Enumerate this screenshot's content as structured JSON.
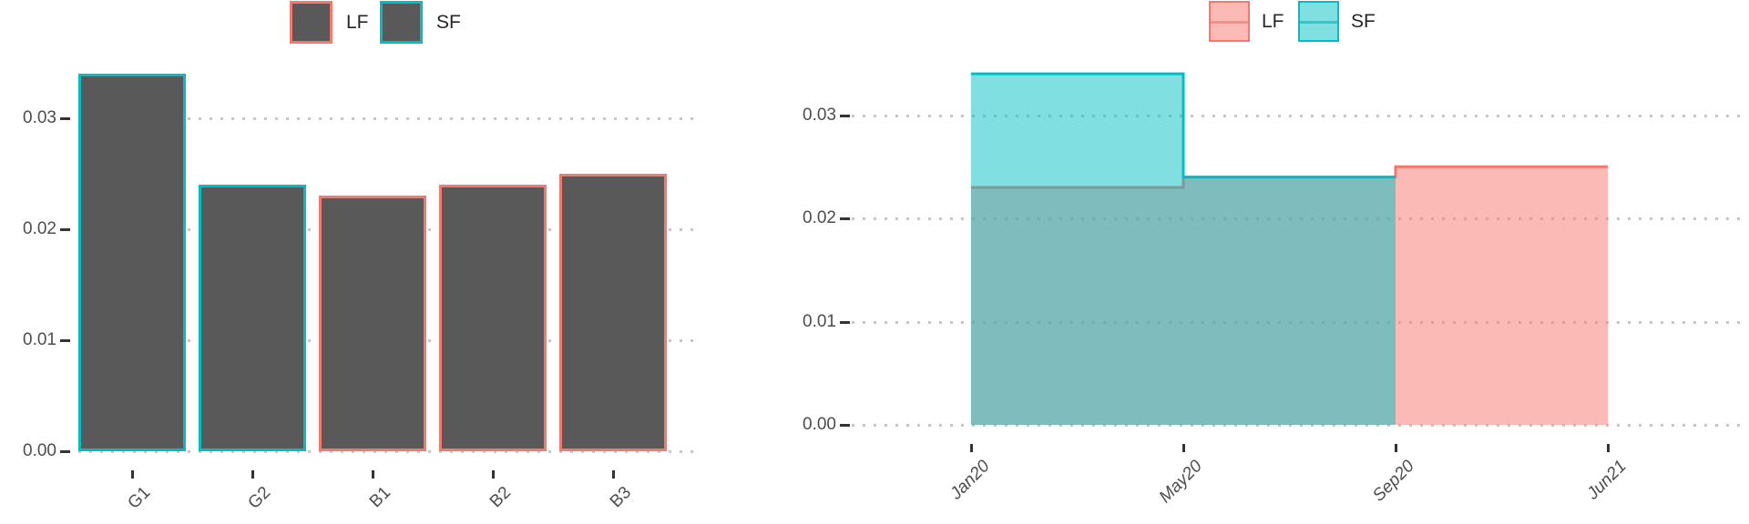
{
  "figure": {
    "background": "#ffffff",
    "colors": {
      "lf_stroke": "#F8766D",
      "sf_stroke": "#00BFC4",
      "lf_fill": "rgba(248,118,109,0.5)",
      "sf_fill": "rgba(0,191,196,0.5)",
      "bar_fill": "#595959",
      "axis_text": "#4d4d4d",
      "legend_text": "#262626",
      "grid_dot": "#c6c6c6",
      "tick_mark": "#333333"
    }
  },
  "chart_data": [
    {
      "type": "bar",
      "title": "",
      "xlabel": "",
      "ylabel": "",
      "categories": [
        "G1",
        "G2",
        "B1",
        "B2",
        "B3"
      ],
      "values": [
        0.034,
        0.024,
        0.023,
        0.024,
        0.025
      ],
      "bar_groups": [
        "SF",
        "SF",
        "LF",
        "LF",
        "LF"
      ],
      "bar_fill": "#595959",
      "ytick_values": [
        0,
        0.01,
        0.02,
        0.03
      ],
      "ytick_labels": [
        "0.00",
        "0.01",
        "0.02",
        "0.03"
      ],
      "ylim": [
        0,
        0.0345
      ],
      "grid": "horizontal-dotted",
      "legend": {
        "position": "top",
        "entries": [
          {
            "label": "LF",
            "group": "LF"
          },
          {
            "label": "SF",
            "group": "SF"
          }
        ]
      }
    },
    {
      "type": "area",
      "subtype": "step-area",
      "title": "",
      "xlabel": "",
      "ylabel": "",
      "x_tick_labels": [
        "Jan20",
        "May20",
        "Sep20",
        "Jun21"
      ],
      "series": [
        {
          "name": "LF",
          "group": "LF",
          "steps": [
            {
              "x0": "Jan20",
              "x1": "May20",
              "value": 0.023
            },
            {
              "x0": "May20",
              "x1": "Sep20",
              "value": 0.024
            },
            {
              "x0": "Sep20",
              "x1": "Jun21",
              "value": 0.025
            }
          ]
        },
        {
          "name": "SF",
          "group": "SF",
          "steps": [
            {
              "x0": "Jan20",
              "x1": "May20",
              "value": 0.034
            },
            {
              "x0": "May20",
              "x1": "Sep20",
              "value": 0.024
            }
          ]
        }
      ],
      "ytick_values": [
        0,
        0.01,
        0.02,
        0.03
      ],
      "ytick_labels": [
        "0.00",
        "0.01",
        "0.02",
        "0.03"
      ],
      "ylim": [
        0,
        0.0345
      ],
      "grid": "horizontal-dotted",
      "legend": {
        "position": "top",
        "entries": [
          {
            "label": "LF",
            "group": "LF"
          },
          {
            "label": "SF",
            "group": "SF"
          }
        ]
      }
    }
  ]
}
